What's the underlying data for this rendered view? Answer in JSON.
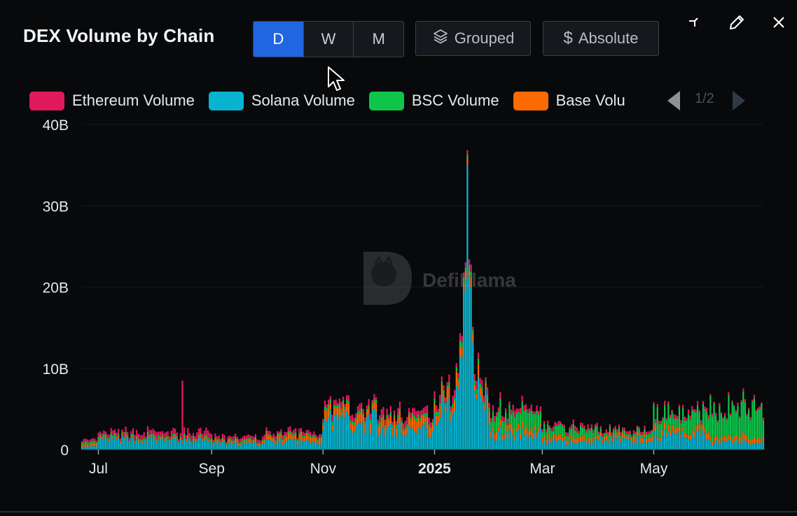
{
  "header": {
    "title": "DEX Volume by Chain",
    "granularity": [
      {
        "label": "D",
        "active": true
      },
      {
        "label": "W",
        "active": false
      },
      {
        "label": "M",
        "active": false
      }
    ],
    "grouped_label": "Grouped",
    "absolute_label": "Absolute",
    "controls": [
      "minimize-icon",
      "edit-icon",
      "close-icon"
    ]
  },
  "legend": {
    "items": [
      {
        "label": "Ethereum Volume",
        "color": "#e0185c"
      },
      {
        "label": "Solana Volume",
        "color": "#06b4d0"
      },
      {
        "label": "BSC Volume",
        "color": "#0ec54a"
      },
      {
        "label": "Base Volu",
        "color": "#ff6a00"
      }
    ],
    "page": "1/2"
  },
  "watermark": "DefiLlama",
  "chart_data": {
    "type": "bar",
    "stacked": true,
    "title": "DEX Volume by Chain",
    "xlabel": "",
    "ylabel": "",
    "x_ticks": [
      "Jul",
      "Sep",
      "Nov",
      "2025",
      "Mar",
      "May"
    ],
    "y_ticks": [
      "0",
      "10B",
      "20B",
      "30B",
      "40B"
    ],
    "ylim": [
      0,
      40000000000
    ],
    "grid": true,
    "legend_position": "top",
    "series": [
      {
        "name": "Ethereum Volume",
        "color": "#e0185c",
        "monthly_avg_billions": {
          "2024-07": 0.5,
          "2024-08": 0.6,
          "2024-09": 0.4,
          "2024-10": 0.4,
          "2024-11": 0.6,
          "2024-12": 0.7,
          "2025-01": 0.7,
          "2025-02": 0.6,
          "2025-03": 0.4,
          "2025-04": 0.3,
          "2025-05": 0.4,
          "2025-06": 0.3
        }
      },
      {
        "name": "Solana Volume",
        "color": "#06b4d0",
        "monthly_avg_billions": {
          "2024-07": 1.2,
          "2024-08": 1.1,
          "2024-09": 0.7,
          "2024-10": 1.0,
          "2024-11": 3.5,
          "2024-12": 2.5,
          "2025-01": 5.0,
          "2025-02": 2.0,
          "2025-03": 1.0,
          "2025-04": 1.2,
          "2025-05": 1.8,
          "2025-06": 1.0
        },
        "peak": {
          "date": "2025-01-19",
          "value_billions": 35.0
        }
      },
      {
        "name": "BSC Volume",
        "color": "#0ec54a",
        "monthly_avg_billions": {
          "2024-07": 0.2,
          "2024-08": 0.2,
          "2024-09": 0.15,
          "2024-10": 0.2,
          "2024-11": 0.3,
          "2024-12": 0.3,
          "2025-01": 0.5,
          "2025-02": 1.8,
          "2025-03": 1.0,
          "2025-04": 0.4,
          "2025-05": 1.8,
          "2025-06": 3.5
        }
      },
      {
        "name": "Base Volume",
        "color": "#ff6a00",
        "monthly_avg_billions": {
          "2024-07": 0.2,
          "2024-08": 0.2,
          "2024-09": 0.3,
          "2024-10": 0.6,
          "2024-11": 1.0,
          "2024-12": 1.1,
          "2025-01": 1.2,
          "2025-02": 0.7,
          "2025-03": 0.5,
          "2025-04": 0.5,
          "2025-05": 0.6,
          "2025-06": 0.6
        }
      }
    ],
    "annotations": [
      {
        "date": "2024-08-16",
        "series": "Ethereum Volume",
        "value_billions": 7.3
      }
    ]
  }
}
